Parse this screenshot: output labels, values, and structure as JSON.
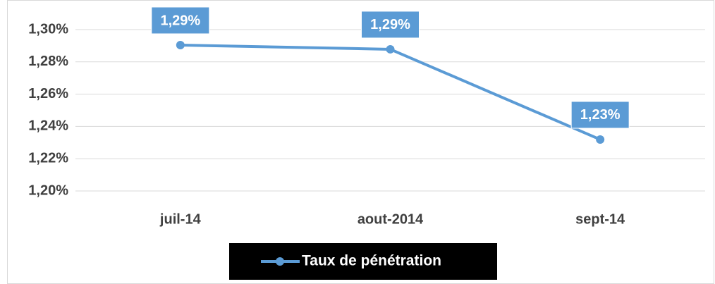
{
  "chart_data": {
    "type": "line",
    "categories": [
      "juil-14",
      "aout-2014",
      "sept-14"
    ],
    "series": [
      {
        "name": "Taux de pénétration",
        "color": "#5b9bd5",
        "values": [
          1.2904,
          1.2878,
          1.2319
        ],
        "value_labels": [
          "1,29%",
          "1,29%",
          "1,23%"
        ]
      }
    ],
    "ylim": [
      1.2,
      1.3
    ],
    "yticks": [
      {
        "value": 1.2,
        "label": "1,20%"
      },
      {
        "value": 1.22,
        "label": "1,22%"
      },
      {
        "value": 1.24,
        "label": "1,24%"
      },
      {
        "value": 1.26,
        "label": "1,26%"
      },
      {
        "value": 1.28,
        "label": "1,28%"
      },
      {
        "value": 1.3,
        "label": "1,30%"
      }
    ],
    "grid": true,
    "legend": "bottom"
  }
}
